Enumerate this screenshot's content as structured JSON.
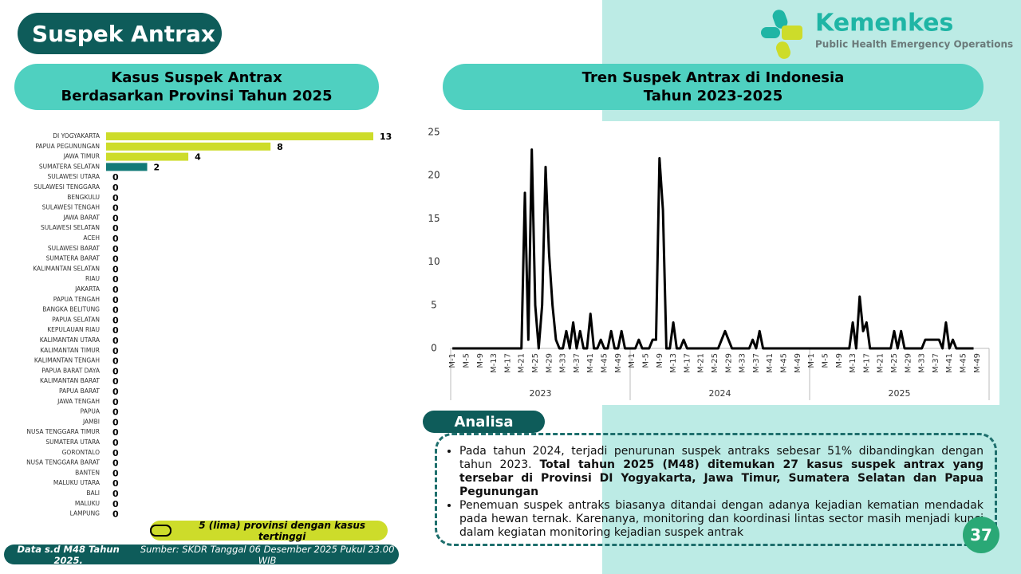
{
  "header": {
    "title": "Suspek Antrax"
  },
  "logo": {
    "name": "Kemenkes",
    "subtitle": "Public Health Emergency Operations Center"
  },
  "chart_data": [
    {
      "type": "hbar",
      "title": [
        "Kasus Suspek Antrax",
        "Berdasarkan Provinsi Tahun 2025"
      ],
      "categories": [
        "DI YOGYAKARTA",
        "PAPUA PEGUNUNGAN",
        "JAWA TIMUR",
        "SUMATERA SELATAN",
        "SULAWESI UTARA",
        "SULAWESI TENGGARA",
        "BENGKULU",
        "SULAWESI TENGAH",
        "JAWA BARAT",
        "SULAWESI SELATAN",
        "ACEH",
        "SULAWESI BARAT",
        "SUMATERA BARAT",
        "KALIMANTAN SELATAN",
        "RIAU",
        "JAKARTA",
        "PAPUA TENGAH",
        "BANGKA BELITUNG",
        "PAPUA SELATAN",
        "KEPULAUAN RIAU",
        "KALIMANTAN UTARA",
        "KALIMANTAN TIMUR",
        "KALIMANTAN TENGAH",
        "PAPUA BARAT DAYA",
        "KALIMANTAN BARAT",
        "PAPUA BARAT",
        "JAWA TENGAH",
        "PAPUA",
        "JAMBI",
        "NUSA TENGGARA TIMUR",
        "SUMATERA UTARA",
        "GORONTALO",
        "NUSA TENGGARA BARAT",
        "BANTEN",
        "MALUKU UTARA",
        "BALI",
        "MALUKU",
        "LAMPUNG"
      ],
      "values": [
        13,
        8,
        4,
        2,
        0,
        0,
        0,
        0,
        0,
        0,
        0,
        0,
        0,
        0,
        0,
        0,
        0,
        0,
        0,
        0,
        0,
        0,
        0,
        0,
        0,
        0,
        0,
        0,
        0,
        0,
        0,
        0,
        0,
        0,
        0,
        0,
        0,
        0
      ],
      "colors": [
        "#cddc2a",
        "#cddc2a",
        "#cddc2a",
        "#137a78",
        "#137a78",
        "#137a78",
        "#137a78",
        "#137a78",
        "#137a78",
        "#137a78",
        "#137a78",
        "#137a78",
        "#137a78",
        "#137a78",
        "#137a78",
        "#137a78",
        "#137a78",
        "#137a78",
        "#137a78",
        "#137a78",
        "#137a78",
        "#137a78",
        "#137a78",
        "#137a78",
        "#137a78",
        "#137a78",
        "#137a78",
        "#137a78",
        "#137a78",
        "#137a78",
        "#137a78",
        "#137a78",
        "#137a78",
        "#137a78",
        "#137a78",
        "#137a78",
        "#137a78",
        "#137a78"
      ],
      "note": "5 (lima) provinsi dengan kasus tertinggi"
    },
    {
      "type": "line",
      "title": [
        "Tren Suspek Antrax di Indonesia",
        "Tahun 2023-2025"
      ],
      "groups": [
        {
          "label": "2023",
          "categories": [
            "M-1",
            null,
            null,
            null,
            "M-5",
            null,
            null,
            null,
            "M-9",
            null,
            null,
            null,
            "M-13",
            null,
            null,
            null,
            "M-17",
            null,
            null,
            null,
            "M-21",
            null,
            null,
            null,
            "M-25",
            null,
            null,
            null,
            "M-29",
            null,
            null,
            null,
            "M-33",
            null,
            null,
            null,
            "M-37",
            null,
            null,
            null,
            "M-41",
            null,
            null,
            null,
            "M-45",
            null,
            null,
            null,
            "M-49",
            null,
            null,
            null
          ]
        },
        {
          "label": "2024",
          "categories": [
            "M-1",
            null,
            null,
            null,
            "M-5",
            null,
            null,
            null,
            "M-9",
            null,
            null,
            null,
            "M-13",
            null,
            null,
            null,
            "M-17",
            null,
            null,
            null,
            "M-21",
            null,
            null,
            null,
            "M-25",
            null,
            null,
            null,
            "M-29",
            null,
            null,
            null,
            "M-33",
            null,
            null,
            null,
            "M-37",
            null,
            null,
            null,
            "M-41",
            null,
            null,
            null,
            "M-45",
            null,
            null,
            null,
            "M-49",
            null,
            null,
            null
          ]
        },
        {
          "label": "2025",
          "categories": [
            "M-1",
            null,
            null,
            null,
            "M-5",
            null,
            null,
            null,
            "M-9",
            null,
            null,
            null,
            "M-13",
            null,
            null,
            null,
            "M-17",
            null,
            null,
            null,
            "M-21",
            null,
            null,
            null,
            "M-25",
            null,
            null,
            null,
            "M-29",
            null,
            null,
            null,
            "M-33",
            null,
            null,
            null,
            "M-37",
            null,
            null,
            null,
            "M-41",
            null,
            null,
            null,
            "M-45",
            null,
            null,
            null,
            "M-49",
            null,
            null,
            null
          ]
        }
      ],
      "series": [
        {
          "color": "#000000",
          "values": [
            0,
            0,
            0,
            0,
            0,
            0,
            0,
            0,
            0,
            0,
            0,
            0,
            0,
            0,
            0,
            0,
            0,
            0,
            0,
            0,
            0,
            18,
            1,
            23,
            5,
            0,
            5,
            21,
            11,
            5,
            1,
            0,
            0,
            2,
            0,
            3,
            0,
            2,
            0,
            0,
            4,
            0,
            0,
            1,
            0,
            0,
            2,
            0,
            0,
            2,
            0,
            0,
            0,
            0,
            1,
            0,
            0,
            0,
            1,
            1,
            22,
            16,
            0,
            0,
            3,
            0,
            0,
            1,
            0,
            0,
            0,
            0,
            0,
            0,
            0,
            0,
            0,
            0,
            1,
            2,
            1,
            0,
            0,
            0,
            0,
            0,
            0,
            1,
            0,
            2,
            0,
            0,
            0,
            0,
            0,
            0,
            0,
            0,
            0,
            0,
            0,
            0,
            0,
            0,
            0,
            0,
            0,
            0,
            0,
            0,
            0,
            0,
            0,
            0,
            0,
            0,
            3,
            0,
            6,
            2,
            3,
            0,
            0,
            0,
            0,
            0,
            0,
            0,
            2,
            0,
            2,
            0,
            0,
            0,
            0,
            0,
            0,
            1,
            1,
            1,
            1,
            1,
            0,
            3,
            0,
            1,
            0,
            0,
            0,
            0,
            0,
            0,
            null,
            null,
            null,
            null
          ]
        }
      ],
      "ylim": [
        0,
        25
      ],
      "yticks": [
        0,
        5,
        10,
        15,
        20,
        25
      ],
      "grid": false
    }
  ],
  "analysis": {
    "title": "Analisa",
    "bullets": [
      {
        "text": "Pada tahun 2024, terjadi penurunan suspek antraks sebesar 51% dibandingkan dengan tahun 2023.",
        "bold": "Total tahun 2025 (M48) ditemukan 27 kasus suspek antrax yang tersebar di Provinsi DI Yogyakarta, Jawa Timur, Sumatera Selatan dan Papua Pegunungan"
      },
      {
        "text": "Penemuan suspek antraks biasanya ditandai dengan adanya kejadian kematian mendadak pada hewan ternak. Karenanya, monitoring dan koordinasi lintas sector masih menjadi kunci dalam kegiatan monitoring kejadian suspek antrak"
      }
    ]
  },
  "footer": {
    "bold": "Data s.d M48 Tahun 2025.",
    "text": "Sumber: SKDR Tanggal 06 Desember 2025 Pukul 23.00 WIB"
  },
  "page_number": "37"
}
